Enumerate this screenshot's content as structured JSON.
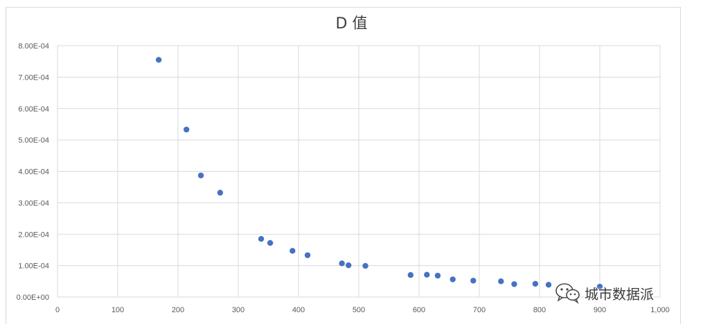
{
  "chart_data": {
    "type": "scatter",
    "title": "D 值",
    "xlabel": "",
    "ylabel": "",
    "xlim": [
      0,
      1000
    ],
    "ylim": [
      0,
      0.0008
    ],
    "grid": true,
    "legend": "none",
    "marker_color": "#4472c4",
    "x_ticks": [
      "0",
      "100",
      "200",
      "300",
      "400",
      "500",
      "600",
      "700",
      "800",
      "900",
      "1,000"
    ],
    "x_tick_values": [
      0,
      100,
      200,
      300,
      400,
      500,
      600,
      700,
      800,
      900,
      1000
    ],
    "y_ticks": [
      "0.00E+00",
      "1.00E-04",
      "2.00E-04",
      "3.00E-04",
      "4.00E-04",
      "5.00E-04",
      "6.00E-04",
      "7.00E-04",
      "8.00E-04"
    ],
    "y_tick_values": [
      0,
      0.0001,
      0.0002,
      0.0003,
      0.0004,
      0.0005,
      0.0006,
      0.0007,
      0.0008
    ],
    "series": [
      {
        "points": [
          [
            168,
            0.000755
          ],
          [
            214,
            0.000533
          ],
          [
            238,
            0.000387
          ],
          [
            270,
            0.000332
          ],
          [
            338,
            0.000185
          ],
          [
            353,
            0.000172
          ],
          [
            390,
            0.000147
          ],
          [
            415,
            0.000133
          ],
          [
            472,
            0.000107
          ],
          [
            483,
            0.000101
          ],
          [
            511,
            9.9e-05
          ],
          [
            586,
            7e-05
          ],
          [
            613,
            7.1e-05
          ],
          [
            631,
            6.8e-05
          ],
          [
            656,
            5.6e-05
          ],
          [
            690,
            5.2e-05
          ],
          [
            736,
            5e-05
          ],
          [
            758,
            4.1e-05
          ],
          [
            793,
            4.2e-05
          ],
          [
            815,
            3.9e-05
          ],
          [
            900,
            3.3e-05
          ]
        ]
      }
    ]
  },
  "watermark": {
    "text": "城市数据派",
    "icon": "wechat-icon"
  }
}
